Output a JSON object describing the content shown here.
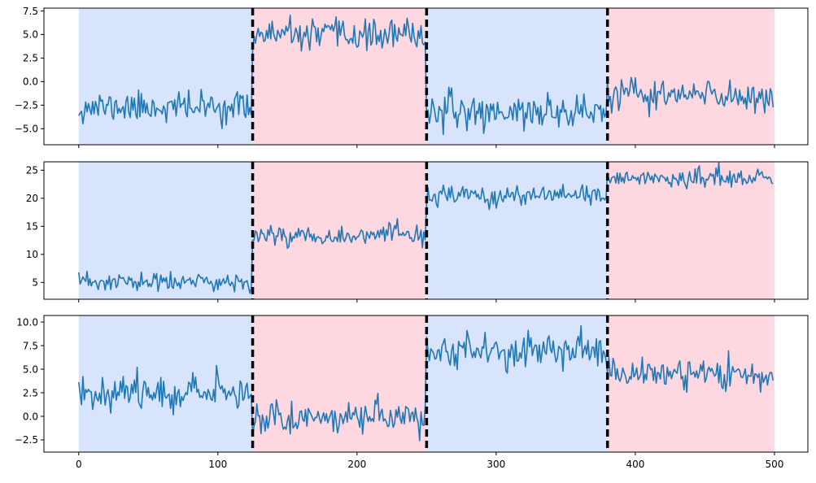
{
  "chart_data": {
    "type": "line",
    "shared_x": true,
    "xlim": [
      -25,
      524
    ],
    "x_ticks": [
      0,
      100,
      200,
      300,
      400,
      500
    ],
    "n_points": 500,
    "change_points": [
      125,
      250,
      380
    ],
    "segments": [
      {
        "start": 0,
        "end": 125,
        "color": "#d7e4fc"
      },
      {
        "start": 125,
        "end": 250,
        "color": "#fdd8e1"
      },
      {
        "start": 250,
        "end": 380,
        "color": "#d7e4fc"
      },
      {
        "start": 380,
        "end": 500,
        "color": "#fdd8e1"
      }
    ],
    "colors": {
      "line": "#1f77b4",
      "changepoint": "#000000"
    },
    "grid": false,
    "subplots": [
      {
        "ylim": [
          -6.7,
          7.8
        ],
        "y_ticks": [
          -5.0,
          -2.5,
          0.0,
          2.5,
          5.0,
          7.5
        ],
        "y_tick_labels": [
          "−5.0",
          "−2.5",
          "0.0",
          "2.5",
          "5.0",
          "7.5"
        ],
        "segment_means": [
          -2.7,
          4.9,
          -3.2,
          -1.5
        ],
        "segment_noise": [
          0.8,
          0.8,
          0.9,
          0.9
        ],
        "seed": 11
      },
      {
        "ylim": [
          2.0,
          26.5
        ],
        "y_ticks": [
          5,
          10,
          15,
          20,
          25
        ],
        "y_tick_labels": [
          "5",
          "10",
          "15",
          "20",
          "25"
        ],
        "segment_means": [
          5.0,
          13.4,
          20.3,
          23.6
        ],
        "segment_noise": [
          0.9,
          0.9,
          0.9,
          0.8
        ],
        "seed": 23
      },
      {
        "ylim": [
          -3.8,
          10.7
        ],
        "y_ticks": [
          -2.5,
          0.0,
          2.5,
          5.0,
          7.5,
          10.0
        ],
        "y_tick_labels": [
          "−2.5",
          "0.0",
          "2.5",
          "5.0",
          "7.5",
          "10.0"
        ],
        "segment_means": [
          2.6,
          -0.1,
          7.0,
          4.5
        ],
        "segment_noise": [
          0.9,
          0.9,
          0.9,
          0.8
        ],
        "seed": 37
      }
    ]
  }
}
